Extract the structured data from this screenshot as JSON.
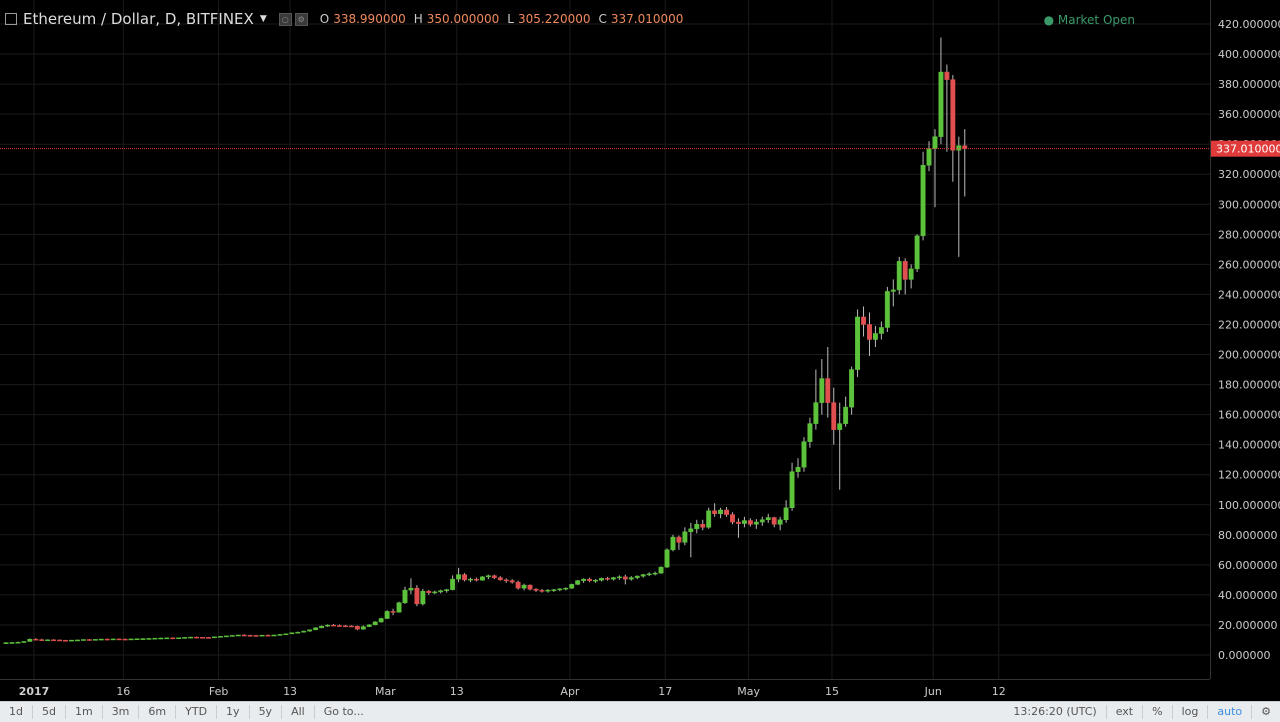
{
  "header": {
    "symbol_title": "Ethereum / Dollar, D, BITFINEX",
    "ohlc": [
      {
        "label": "O",
        "value": "338.990000"
      },
      {
        "label": "H",
        "value": "350.000000"
      },
      {
        "label": "L",
        "value": "305.220000"
      },
      {
        "label": "C",
        "value": "337.010000"
      }
    ],
    "market_status": "Market Open"
  },
  "price_axis": {
    "ticks": [
      "420.000000",
      "400.000000",
      "380.000000",
      "360.000000",
      "340.000000",
      "320.000000",
      "300.000000",
      "280.000000",
      "260.000000",
      "240.000000",
      "220.000000",
      "200.000000",
      "180.000000",
      "160.000000",
      "140.000000",
      "120.000000",
      "100.000000",
      "80.000000",
      "60.000000",
      "40.000000",
      "20.000000",
      "0.000000"
    ],
    "last_price_label": "337.010000"
  },
  "time_axis": {
    "ticks": [
      "2017",
      "16",
      "Feb",
      "13",
      "Mar",
      "13",
      "Apr",
      "17",
      "May",
      "15",
      "Jun",
      "12"
    ]
  },
  "toolbar": {
    "ranges": [
      "1d",
      "5d",
      "1m",
      "3m",
      "6m",
      "YTD",
      "1y",
      "5y",
      "All"
    ],
    "goto": "Go to...",
    "time": "13:26:20 (UTC)",
    "ext": "ext",
    "percent": "%",
    "log": "log",
    "auto": "auto"
  },
  "colors": {
    "up": "#5cc23b",
    "down": "#e05050",
    "last_line": "#e03a3a",
    "grid": "#1b1b1b"
  },
  "chart_data": {
    "type": "candlestick",
    "title": "Ethereum / Dollar, D, BITFINEX",
    "xlabel": "",
    "ylabel": "",
    "ylim": [
      -10,
      430
    ],
    "x_start": "2017-01-01",
    "last_price": 337.01,
    "candles": [
      {
        "o": 8.0,
        "h": 8.5,
        "l": 7.6,
        "c": 8.2
      },
      {
        "o": 8.2,
        "h": 8.6,
        "l": 7.9,
        "c": 8.3
      },
      {
        "o": 8.3,
        "h": 8.9,
        "l": 8.0,
        "c": 8.5
      },
      {
        "o": 8.5,
        "h": 9.2,
        "l": 8.2,
        "c": 9.0
      },
      {
        "o": 9.0,
        "h": 11.0,
        "l": 8.8,
        "c": 10.5
      },
      {
        "o": 10.5,
        "h": 11.2,
        "l": 9.7,
        "c": 10.2
      },
      {
        "o": 10.2,
        "h": 10.8,
        "l": 9.5,
        "c": 9.9
      },
      {
        "o": 9.9,
        "h": 10.4,
        "l": 9.6,
        "c": 10.1
      },
      {
        "o": 10.1,
        "h": 10.5,
        "l": 9.8,
        "c": 10.0
      },
      {
        "o": 10.0,
        "h": 10.3,
        "l": 9.6,
        "c": 9.8
      },
      {
        "o": 9.8,
        "h": 10.1,
        "l": 9.5,
        "c": 9.7
      },
      {
        "o": 9.7,
        "h": 10.0,
        "l": 9.4,
        "c": 9.9
      },
      {
        "o": 9.9,
        "h": 10.2,
        "l": 9.6,
        "c": 10.0
      },
      {
        "o": 10.0,
        "h": 10.4,
        "l": 9.8,
        "c": 10.3
      },
      {
        "o": 10.3,
        "h": 10.6,
        "l": 10.0,
        "c": 10.2
      },
      {
        "o": 10.2,
        "h": 10.5,
        "l": 10.0,
        "c": 10.4
      },
      {
        "o": 10.4,
        "h": 10.8,
        "l": 10.1,
        "c": 10.6
      },
      {
        "o": 10.6,
        "h": 10.9,
        "l": 10.3,
        "c": 10.5
      },
      {
        "o": 10.5,
        "h": 10.8,
        "l": 10.2,
        "c": 10.7
      },
      {
        "o": 10.7,
        "h": 11.0,
        "l": 10.4,
        "c": 10.6
      },
      {
        "o": 10.6,
        "h": 10.9,
        "l": 10.3,
        "c": 10.5
      },
      {
        "o": 10.5,
        "h": 10.8,
        "l": 10.2,
        "c": 10.7
      },
      {
        "o": 10.7,
        "h": 11.0,
        "l": 10.5,
        "c": 10.8
      },
      {
        "o": 10.8,
        "h": 11.1,
        "l": 10.6,
        "c": 10.9
      },
      {
        "o": 10.9,
        "h": 11.2,
        "l": 10.7,
        "c": 11.0
      },
      {
        "o": 11.0,
        "h": 11.3,
        "l": 10.8,
        "c": 11.2
      },
      {
        "o": 11.2,
        "h": 11.5,
        "l": 11.0,
        "c": 11.3
      },
      {
        "o": 11.3,
        "h": 11.6,
        "l": 11.1,
        "c": 11.4
      },
      {
        "o": 11.4,
        "h": 11.7,
        "l": 11.2,
        "c": 11.3
      },
      {
        "o": 11.3,
        "h": 11.6,
        "l": 11.1,
        "c": 11.5
      },
      {
        "o": 11.5,
        "h": 11.9,
        "l": 11.3,
        "c": 11.7
      },
      {
        "o": 11.7,
        "h": 12.1,
        "l": 11.5,
        "c": 11.9
      },
      {
        "o": 11.9,
        "h": 12.2,
        "l": 11.6,
        "c": 11.8
      },
      {
        "o": 11.8,
        "h": 12.0,
        "l": 11.5,
        "c": 11.7
      },
      {
        "o": 11.7,
        "h": 12.0,
        "l": 11.4,
        "c": 11.6
      },
      {
        "o": 11.6,
        "h": 12.3,
        "l": 11.5,
        "c": 12.1
      },
      {
        "o": 12.1,
        "h": 12.6,
        "l": 11.9,
        "c": 12.4
      },
      {
        "o": 12.4,
        "h": 12.9,
        "l": 12.1,
        "c": 12.7
      },
      {
        "o": 12.7,
        "h": 13.2,
        "l": 12.5,
        "c": 13.0
      },
      {
        "o": 13.0,
        "h": 13.5,
        "l": 12.8,
        "c": 13.3
      },
      {
        "o": 13.3,
        "h": 13.8,
        "l": 13.0,
        "c": 13.1
      },
      {
        "o": 13.1,
        "h": 13.4,
        "l": 12.8,
        "c": 13.0
      },
      {
        "o": 13.0,
        "h": 13.4,
        "l": 12.7,
        "c": 12.9
      },
      {
        "o": 12.9,
        "h": 13.3,
        "l": 12.6,
        "c": 13.2
      },
      {
        "o": 13.2,
        "h": 13.6,
        "l": 12.9,
        "c": 13.1
      },
      {
        "o": 13.1,
        "h": 13.5,
        "l": 12.8,
        "c": 13.3
      },
      {
        "o": 13.3,
        "h": 13.9,
        "l": 13.1,
        "c": 13.7
      },
      {
        "o": 13.7,
        "h": 14.3,
        "l": 13.4,
        "c": 14.1
      },
      {
        "o": 14.1,
        "h": 15.0,
        "l": 13.9,
        "c": 14.8
      },
      {
        "o": 14.8,
        "h": 15.5,
        "l": 14.4,
        "c": 15.2
      },
      {
        "o": 15.2,
        "h": 16.2,
        "l": 14.9,
        "c": 15.9
      },
      {
        "o": 15.9,
        "h": 17.0,
        "l": 15.5,
        "c": 16.8
      },
      {
        "o": 16.8,
        "h": 18.5,
        "l": 16.5,
        "c": 18.1
      },
      {
        "o": 18.1,
        "h": 19.6,
        "l": 17.8,
        "c": 19.2
      },
      {
        "o": 19.2,
        "h": 20.4,
        "l": 18.7,
        "c": 19.9
      },
      {
        "o": 19.9,
        "h": 20.6,
        "l": 19.2,
        "c": 19.6
      },
      {
        "o": 19.6,
        "h": 20.3,
        "l": 19.0,
        "c": 19.4
      },
      {
        "o": 19.4,
        "h": 20.0,
        "l": 18.9,
        "c": 19.3
      },
      {
        "o": 19.3,
        "h": 19.8,
        "l": 18.8,
        "c": 19.1
      },
      {
        "o": 19.1,
        "h": 19.6,
        "l": 16.5,
        "c": 17.2
      },
      {
        "o": 17.2,
        "h": 19.6,
        "l": 16.8,
        "c": 18.9
      },
      {
        "o": 18.9,
        "h": 20.5,
        "l": 18.6,
        "c": 20.1
      },
      {
        "o": 20.1,
        "h": 22.5,
        "l": 19.8,
        "c": 22.0
      },
      {
        "o": 22.0,
        "h": 24.8,
        "l": 21.5,
        "c": 24.3
      },
      {
        "o": 24.3,
        "h": 29.8,
        "l": 24.0,
        "c": 29.0
      },
      {
        "o": 29.0,
        "h": 30.8,
        "l": 26.5,
        "c": 28.5
      },
      {
        "o": 28.5,
        "h": 35.5,
        "l": 28.2,
        "c": 34.8
      },
      {
        "o": 34.8,
        "h": 45.5,
        "l": 34.0,
        "c": 43.2
      },
      {
        "o": 43.2,
        "h": 51.0,
        "l": 40.5,
        "c": 44.5
      },
      {
        "o": 44.5,
        "h": 46.5,
        "l": 32.5,
        "c": 34.0
      },
      {
        "o": 34.0,
        "h": 44.0,
        "l": 33.0,
        "c": 42.5
      },
      {
        "o": 42.5,
        "h": 43.2,
        "l": 40.0,
        "c": 41.5
      },
      {
        "o": 41.5,
        "h": 42.8,
        "l": 40.5,
        "c": 42.0
      },
      {
        "o": 42.0,
        "h": 43.5,
        "l": 41.0,
        "c": 42.8
      },
      {
        "o": 42.8,
        "h": 44.0,
        "l": 41.5,
        "c": 43.5
      },
      {
        "o": 43.5,
        "h": 53.0,
        "l": 43.0,
        "c": 50.5
      },
      {
        "o": 50.5,
        "h": 58.0,
        "l": 48.5,
        "c": 53.5
      },
      {
        "o": 53.5,
        "h": 54.5,
        "l": 49.0,
        "c": 50.0
      },
      {
        "o": 50.0,
        "h": 51.5,
        "l": 48.5,
        "c": 50.5
      },
      {
        "o": 50.5,
        "h": 51.5,
        "l": 49.0,
        "c": 49.8
      },
      {
        "o": 49.8,
        "h": 52.5,
        "l": 49.5,
        "c": 52.0
      },
      {
        "o": 52.0,
        "h": 53.5,
        "l": 50.5,
        "c": 52.8
      },
      {
        "o": 52.8,
        "h": 53.5,
        "l": 50.5,
        "c": 51.5
      },
      {
        "o": 51.5,
        "h": 52.5,
        "l": 49.5,
        "c": 50.0
      },
      {
        "o": 50.0,
        "h": 51.0,
        "l": 48.0,
        "c": 49.5
      },
      {
        "o": 49.5,
        "h": 50.5,
        "l": 47.5,
        "c": 48.5
      },
      {
        "o": 48.5,
        "h": 49.5,
        "l": 43.5,
        "c": 44.5
      },
      {
        "o": 44.5,
        "h": 47.5,
        "l": 43.0,
        "c": 46.5
      },
      {
        "o": 46.5,
        "h": 47.0,
        "l": 43.0,
        "c": 43.8
      },
      {
        "o": 43.8,
        "h": 44.5,
        "l": 42.0,
        "c": 43.0
      },
      {
        "o": 43.0,
        "h": 44.0,
        "l": 41.5,
        "c": 42.5
      },
      {
        "o": 42.5,
        "h": 43.8,
        "l": 41.5,
        "c": 43.2
      },
      {
        "o": 43.2,
        "h": 44.0,
        "l": 42.0,
        "c": 43.5
      },
      {
        "o": 43.5,
        "h": 44.5,
        "l": 42.5,
        "c": 44.0
      },
      {
        "o": 44.0,
        "h": 45.0,
        "l": 43.0,
        "c": 44.5
      },
      {
        "o": 44.5,
        "h": 47.5,
        "l": 44.0,
        "c": 47.0
      },
      {
        "o": 47.0,
        "h": 50.0,
        "l": 46.5,
        "c": 49.5
      },
      {
        "o": 49.5,
        "h": 51.0,
        "l": 48.0,
        "c": 50.5
      },
      {
        "o": 50.5,
        "h": 51.5,
        "l": 48.5,
        "c": 49.5
      },
      {
        "o": 49.5,
        "h": 50.5,
        "l": 48.0,
        "c": 49.8
      },
      {
        "o": 49.8,
        "h": 51.5,
        "l": 49.0,
        "c": 51.0
      },
      {
        "o": 51.0,
        "h": 52.0,
        "l": 49.5,
        "c": 50.5
      },
      {
        "o": 50.5,
        "h": 52.0,
        "l": 49.5,
        "c": 51.5
      },
      {
        "o": 51.5,
        "h": 53.0,
        "l": 50.0,
        "c": 52.0
      },
      {
        "o": 52.0,
        "h": 53.5,
        "l": 47.0,
        "c": 50.5
      },
      {
        "o": 50.5,
        "h": 52.5,
        "l": 49.5,
        "c": 51.5
      },
      {
        "o": 51.5,
        "h": 53.0,
        "l": 50.5,
        "c": 52.5
      },
      {
        "o": 52.5,
        "h": 54.0,
        "l": 51.5,
        "c": 53.5
      },
      {
        "o": 53.5,
        "h": 55.0,
        "l": 52.5,
        "c": 54.0
      },
      {
        "o": 54.0,
        "h": 55.5,
        "l": 53.0,
        "c": 54.5
      },
      {
        "o": 54.5,
        "h": 59.0,
        "l": 54.0,
        "c": 58.5
      },
      {
        "o": 58.5,
        "h": 71.0,
        "l": 58.0,
        "c": 70.0
      },
      {
        "o": 70.0,
        "h": 80.0,
        "l": 69.0,
        "c": 78.5
      },
      {
        "o": 78.5,
        "h": 79.5,
        "l": 70.0,
        "c": 75.0
      },
      {
        "o": 75.0,
        "h": 85.0,
        "l": 73.0,
        "c": 82.0
      },
      {
        "o": 82.0,
        "h": 88.0,
        "l": 65.0,
        "c": 84.0
      },
      {
        "o": 84.0,
        "h": 90.0,
        "l": 81.0,
        "c": 87.0
      },
      {
        "o": 87.0,
        "h": 90.0,
        "l": 83.0,
        "c": 85.0
      },
      {
        "o": 85.0,
        "h": 98.0,
        "l": 84.0,
        "c": 96.0
      },
      {
        "o": 96.0,
        "h": 101.0,
        "l": 92.0,
        "c": 94.0
      },
      {
        "o": 94.0,
        "h": 98.0,
        "l": 91.0,
        "c": 96.5
      },
      {
        "o": 96.5,
        "h": 98.5,
        "l": 92.0,
        "c": 93.5
      },
      {
        "o": 93.5,
        "h": 95.0,
        "l": 87.0,
        "c": 88.5
      },
      {
        "o": 88.5,
        "h": 91.0,
        "l": 78.0,
        "c": 87.5
      },
      {
        "o": 87.5,
        "h": 92.0,
        "l": 85.0,
        "c": 89.5
      },
      {
        "o": 89.5,
        "h": 91.0,
        "l": 85.5,
        "c": 87.0
      },
      {
        "o": 87.0,
        "h": 90.5,
        "l": 84.0,
        "c": 88.5
      },
      {
        "o": 88.5,
        "h": 92.0,
        "l": 86.0,
        "c": 90.0
      },
      {
        "o": 90.0,
        "h": 94.0,
        "l": 88.0,
        "c": 91.5
      },
      {
        "o": 91.5,
        "h": 92.0,
        "l": 85.0,
        "c": 87.0
      },
      {
        "o": 87.0,
        "h": 92.0,
        "l": 83.0,
        "c": 90.0
      },
      {
        "o": 90.0,
        "h": 103.0,
        "l": 88.0,
        "c": 98.0
      },
      {
        "o": 98.0,
        "h": 128.0,
        "l": 96.0,
        "c": 122.0
      },
      {
        "o": 122.0,
        "h": 131.0,
        "l": 118.0,
        "c": 125.0
      },
      {
        "o": 125.0,
        "h": 145.0,
        "l": 122.0,
        "c": 142.0
      },
      {
        "o": 142.0,
        "h": 158.0,
        "l": 138.0,
        "c": 154.0
      },
      {
        "o": 154.0,
        "h": 190.0,
        "l": 150.0,
        "c": 168.0
      },
      {
        "o": 168.0,
        "h": 197.0,
        "l": 160.0,
        "c": 184.0
      },
      {
        "o": 184.0,
        "h": 205.0,
        "l": 158.0,
        "c": 168.0
      },
      {
        "o": 168.0,
        "h": 178.0,
        "l": 140.0,
        "c": 150.0
      },
      {
        "o": 150.0,
        "h": 168.0,
        "l": 110.0,
        "c": 154.0
      },
      {
        "o": 154.0,
        "h": 172.0,
        "l": 152.0,
        "c": 165.0
      },
      {
        "o": 165.0,
        "h": 192.0,
        "l": 160.0,
        "c": 190.0
      },
      {
        "o": 190.0,
        "h": 230.0,
        "l": 185.0,
        "c": 225.0
      },
      {
        "o": 225.0,
        "h": 232.0,
        "l": 212.0,
        "c": 220.0
      },
      {
        "o": 220.0,
        "h": 228.0,
        "l": 199.0,
        "c": 210.0
      },
      {
        "o": 210.0,
        "h": 219.0,
        "l": 205.0,
        "c": 214.0
      },
      {
        "o": 214.0,
        "h": 222.0,
        "l": 210.0,
        "c": 218.0
      },
      {
        "o": 218.0,
        "h": 245.0,
        "l": 215.0,
        "c": 242.0
      },
      {
        "o": 242.0,
        "h": 250.0,
        "l": 232.0,
        "c": 243.0
      },
      {
        "o": 243.0,
        "h": 265.0,
        "l": 240.0,
        "c": 262.0
      },
      {
        "o": 262.0,
        "h": 264.0,
        "l": 240.0,
        "c": 250.0
      },
      {
        "o": 250.0,
        "h": 260.0,
        "l": 244.0,
        "c": 257.0
      },
      {
        "o": 257.0,
        "h": 280.0,
        "l": 255.0,
        "c": 279.0
      },
      {
        "o": 279.0,
        "h": 335.0,
        "l": 276.0,
        "c": 326.0
      },
      {
        "o": 326.0,
        "h": 342.0,
        "l": 322.0,
        "c": 337.0
      },
      {
        "o": 337.0,
        "h": 350.0,
        "l": 298.0,
        "c": 345.0
      },
      {
        "o": 345.0,
        "h": 411.0,
        "l": 340.0,
        "c": 388.0
      },
      {
        "o": 388.0,
        "h": 393.0,
        "l": 335.0,
        "c": 383.0
      },
      {
        "o": 383.0,
        "h": 386.0,
        "l": 315.0,
        "c": 336.0
      },
      {
        "o": 336.0,
        "h": 345.0,
        "l": 265.0,
        "c": 339.0
      },
      {
        "o": 338.99,
        "h": 350.0,
        "l": 305.22,
        "c": 337.01
      }
    ]
  }
}
